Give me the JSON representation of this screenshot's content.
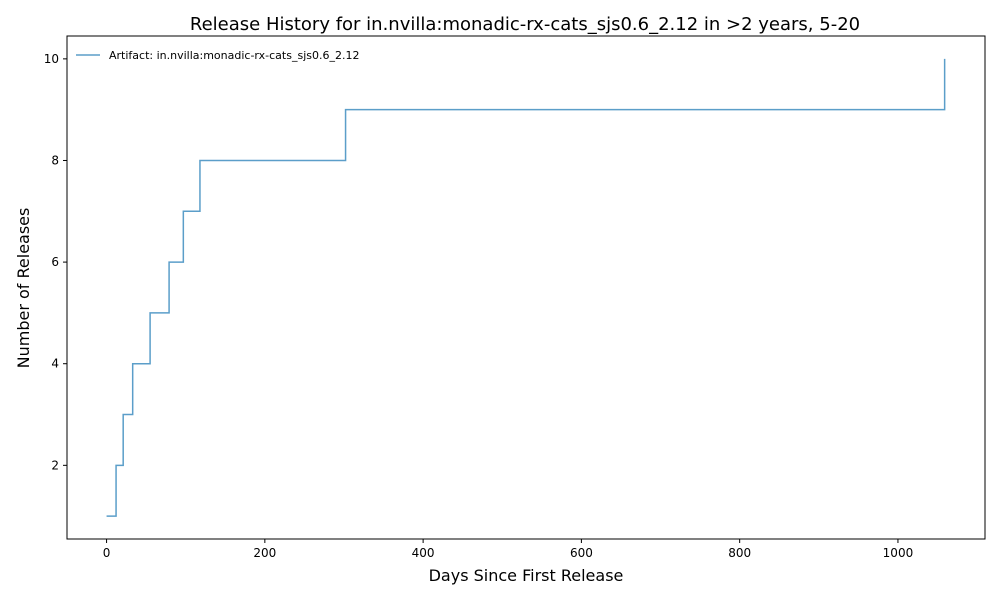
{
  "chart_data": {
    "type": "line",
    "drawstyle": "steps-post",
    "title": "Release History for in.nvilla:monadic-rx-cats_sjs0.6_2.12 in >2 years, 5-20",
    "xlabel": "Days Since First Release",
    "ylabel": "Number of Releases",
    "xlim": [
      -50,
      1110
    ],
    "ylim": [
      0.55,
      10.45
    ],
    "xticks": [
      0,
      200,
      400,
      600,
      800,
      1000
    ],
    "yticks": [
      2,
      4,
      6,
      8,
      10
    ],
    "grid": false,
    "legend_position": "top-left",
    "series": [
      {
        "name": "Artifact: in.nvilla:monadic-rx-cats_sjs0.6_2.12",
        "color": "#5b9ec9",
        "x": [
          0,
          12,
          21,
          33,
          55,
          79,
          97,
          118,
          302,
          1059
        ],
        "y": [
          1,
          2,
          3,
          4,
          5,
          6,
          7,
          8,
          9,
          10
        ]
      }
    ]
  }
}
